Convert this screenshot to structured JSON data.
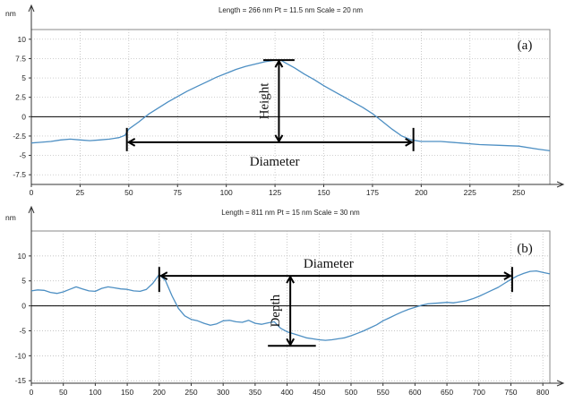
{
  "chart_data": [
    {
      "type": "line",
      "header": "Length = 266 nm  Pt = 11.5 nm  Scale = 20 nm",
      "y_unit": "nm",
      "panel_label": "(a)",
      "xlim": [
        0,
        266
      ],
      "ylim": [
        -8.75,
        11.25
      ],
      "x_ticks": [
        0,
        25,
        50,
        75,
        100,
        125,
        150,
        175,
        200,
        225,
        250
      ],
      "y_ticks": [
        10,
        7.5,
        5,
        2.5,
        0,
        -2.5,
        -5,
        -7.5
      ],
      "x_tick_labels": [
        "0",
        "25",
        "50",
        "75",
        "100",
        "125",
        "150",
        "175",
        "200",
        "225",
        "250"
      ],
      "y_tick_labels": [
        "10",
        "7.5",
        "5",
        "2.5",
        "0",
        "-2.5",
        "-5",
        "-7.5"
      ],
      "grid": true,
      "series": [
        {
          "color": "#4d8fc3",
          "x": [
            0,
            5,
            10,
            15,
            20,
            25,
            30,
            35,
            40,
            45,
            48,
            50,
            55,
            60,
            65,
            70,
            75,
            80,
            85,
            90,
            95,
            100,
            105,
            110,
            115,
            120,
            125,
            128,
            130,
            135,
            140,
            145,
            150,
            155,
            160,
            165,
            170,
            175,
            180,
            185,
            190,
            195,
            200,
            210,
            220,
            230,
            240,
            250,
            260,
            266
          ],
          "y": [
            -3.4,
            -3.3,
            -3.2,
            -3.0,
            -2.9,
            -3.0,
            -3.1,
            -3.0,
            -2.9,
            -2.7,
            -2.4,
            -1.6,
            -0.7,
            0.3,
            1.1,
            1.9,
            2.6,
            3.3,
            3.9,
            4.5,
            5.1,
            5.6,
            6.1,
            6.5,
            6.8,
            7.1,
            7.3,
            7.3,
            7.0,
            6.3,
            5.5,
            4.8,
            4.0,
            3.3,
            2.6,
            1.9,
            1.2,
            0.4,
            -0.6,
            -1.6,
            -2.5,
            -3.0,
            -3.2,
            -3.2,
            -3.4,
            -3.6,
            -3.7,
            -3.8,
            -4.2,
            -4.4
          ]
        }
      ],
      "annotations": {
        "height_label": "Height",
        "diameter_label": "Diameter",
        "height_x": 127,
        "height_y_top": 7.3,
        "height_y_bottom": -3.3,
        "diameter_y": -3.3,
        "diameter_x_start": 49,
        "diameter_x_end": 196
      }
    },
    {
      "type": "line",
      "header": "Length = 811 nm  Pt = 15 nm  Scale = 30 nm",
      "y_unit": "nm",
      "panel_label": "(b)",
      "xlim": [
        0,
        811
      ],
      "ylim": [
        -15.5,
        15
      ],
      "x_ticks": [
        0,
        50,
        100,
        150,
        200,
        250,
        300,
        350,
        400,
        450,
        500,
        550,
        600,
        650,
        700,
        750,
        800
      ],
      "y_ticks": [
        10,
        5,
        0,
        -5,
        -10,
        -15
      ],
      "x_tick_labels": [
        "0",
        "50",
        "100",
        "150",
        "200",
        "250",
        "300",
        "350",
        "400",
        "450",
        "500",
        "550",
        "600",
        "650",
        "700",
        "750",
        "800"
      ],
      "y_tick_labels": [
        "10",
        "5",
        "0",
        "-5",
        "-10",
        "-15"
      ],
      "grid": true,
      "series": [
        {
          "color": "#4d8fc3",
          "x": [
            0,
            10,
            20,
            30,
            40,
            50,
            60,
            70,
            80,
            90,
            100,
            110,
            120,
            130,
            140,
            150,
            160,
            170,
            180,
            190,
            200,
            210,
            220,
            230,
            240,
            250,
            260,
            270,
            280,
            290,
            300,
            310,
            320,
            330,
            340,
            350,
            360,
            370,
            380,
            390,
            400,
            410,
            420,
            430,
            440,
            450,
            460,
            470,
            480,
            490,
            500,
            510,
            520,
            530,
            540,
            550,
            560,
            570,
            580,
            590,
            600,
            610,
            620,
            630,
            640,
            650,
            660,
            670,
            680,
            690,
            700,
            710,
            720,
            730,
            740,
            750,
            760,
            770,
            780,
            790,
            800,
            811
          ],
          "y": [
            3.0,
            3.2,
            3.1,
            2.7,
            2.5,
            2.8,
            3.3,
            3.8,
            3.4,
            3.0,
            2.9,
            3.5,
            3.8,
            3.6,
            3.4,
            3.3,
            3.0,
            2.9,
            3.3,
            4.5,
            6.3,
            5.0,
            2.0,
            -0.5,
            -2.0,
            -2.7,
            -3.0,
            -3.5,
            -3.9,
            -3.6,
            -3.0,
            -2.9,
            -3.2,
            -3.3,
            -2.9,
            -3.5,
            -3.7,
            -3.4,
            -3.2,
            -4.5,
            -5.2,
            -5.6,
            -6.0,
            -6.4,
            -6.6,
            -6.8,
            -6.9,
            -6.8,
            -6.6,
            -6.4,
            -6.0,
            -5.5,
            -5.0,
            -4.4,
            -3.8,
            -3.0,
            -2.4,
            -1.8,
            -1.2,
            -0.7,
            -0.3,
            0.1,
            0.4,
            0.5,
            0.6,
            0.7,
            0.6,
            0.8,
            1.0,
            1.4,
            1.9,
            2.5,
            3.1,
            3.7,
            4.5,
            5.3,
            6.0,
            6.5,
            6.9,
            7.0,
            6.7,
            6.4
          ]
        }
      ],
      "annotations": {
        "depth_label": "Depth",
        "diameter_label": "Diameter",
        "depth_x": 405,
        "depth_y_top": 6.0,
        "depth_y_bottom": -8.0,
        "depth_cap_x_start": 370,
        "depth_cap_x_end": 445,
        "diameter_y": 6.0,
        "diameter_x_start": 200,
        "diameter_x_end": 752
      }
    }
  ]
}
